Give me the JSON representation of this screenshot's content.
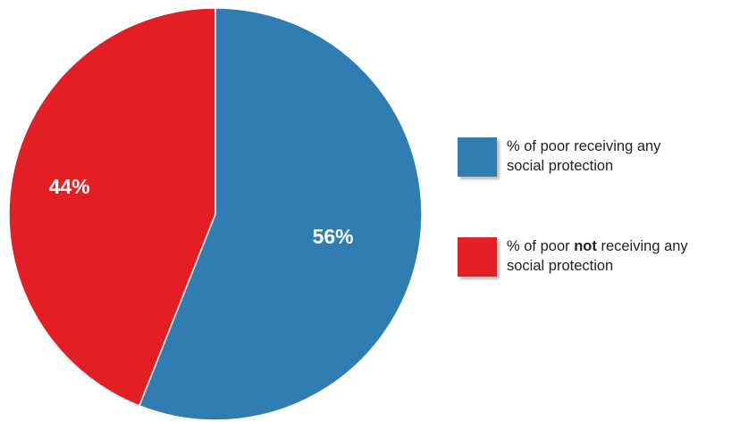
{
  "chart_data": {
    "type": "pie",
    "slices": [
      {
        "name": "% of poor receiving any social protection",
        "value": 56,
        "label": "56%",
        "color": "#2f7db1"
      },
      {
        "name": "% of poor not receiving any social protection",
        "value": 44,
        "label": "44%",
        "color": "#e31e25"
      }
    ],
    "start": "top",
    "direction": "clockwise",
    "legend_position": "right"
  },
  "legend": {
    "items": [
      {
        "color": "#2f7db1",
        "line1": "% of poor receiving any",
        "line2": "social protection"
      },
      {
        "color": "#e31e25",
        "line1_pre": "% of poor ",
        "line1_bold": "not",
        "line1_post": " receiving any",
        "line2": "social protection"
      }
    ]
  }
}
